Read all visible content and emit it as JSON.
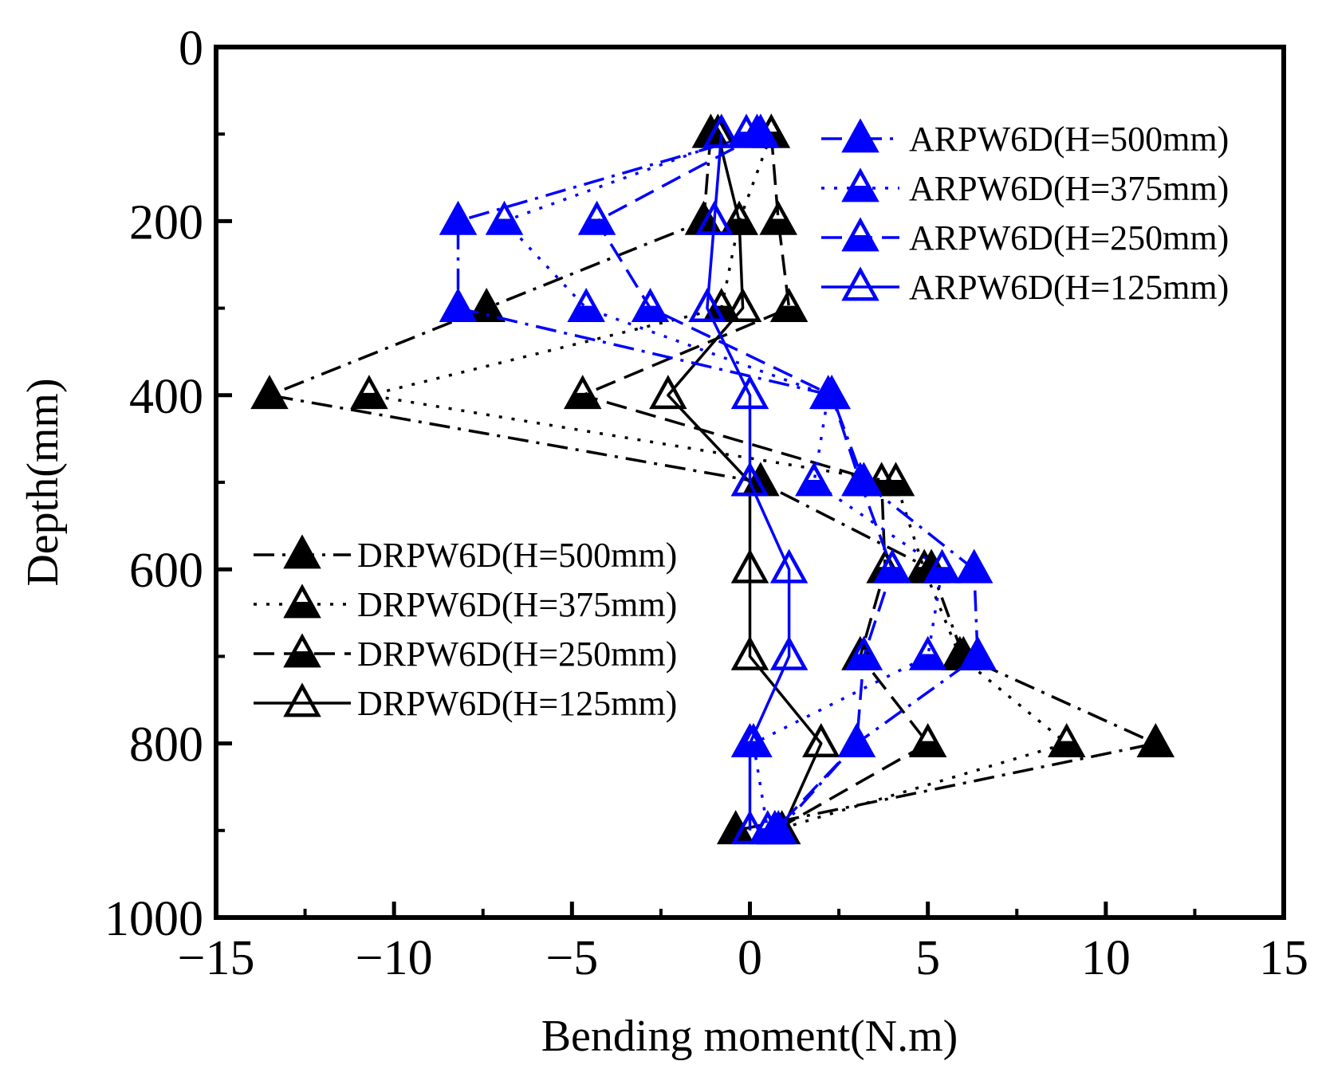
{
  "chart_data": {
    "type": "line",
    "title": "",
    "xlabel": "Bending moment(N.m)",
    "ylabel": "Depth(mm)",
    "xlim": [
      -15,
      15
    ],
    "ylim": [
      1000,
      0
    ],
    "y_inverted": true,
    "x_ticks": [
      -15,
      -10,
      -5,
      0,
      5,
      10,
      15
    ],
    "x_tick_labels": [
      "−15",
      "−10",
      "−5",
      "0",
      "5",
      "10",
      "15"
    ],
    "y_ticks": [
      0,
      200,
      400,
      600,
      800,
      1000
    ],
    "y_tick_labels": [
      "0",
      "200",
      "400",
      "600",
      "800",
      "1000"
    ],
    "grid": false,
    "legends": [
      {
        "placement": "top-right",
        "entries": [
          "ARPW6D(H=500mm)",
          "ARPW6D(H=375mm)",
          "ARPW6D(H=250mm)",
          "ARPW6D(H=125mm)"
        ]
      },
      {
        "placement": "center-left",
        "entries": [
          "DRPW6D(H=500mm)",
          "DRPW6D(H=375mm)",
          "DRPW6D(H=250mm)",
          "DRPW6D(H=125mm)"
        ]
      }
    ],
    "series": [
      {
        "name": "ARPW6D(H=500mm)",
        "color": "#0000ff",
        "line": "dashdot",
        "marker": "filled-triangle",
        "legend": 0,
        "depth": [
          100,
          200,
          300,
          400,
          500,
          600,
          700,
          800,
          900
        ],
        "moment": [
          0.2,
          -8.2,
          -8.2,
          2.3,
          3.2,
          6.3,
          6.4,
          3.0,
          0.8
        ]
      },
      {
        "name": "ARPW6D(H=375mm)",
        "color": "#0000ff",
        "line": "dotted",
        "marker": "half-triangle",
        "legend": 0,
        "depth": [
          100,
          200,
          300,
          400,
          500,
          600,
          700,
          800,
          900
        ],
        "moment": [
          -0.1,
          -6.9,
          -4.6,
          2.2,
          1.8,
          5.4,
          5.0,
          0.1,
          0.5
        ]
      },
      {
        "name": "ARPW6D(H=250mm)",
        "color": "#0000ff",
        "line": "dashed",
        "marker": "half-triangle",
        "legend": 0,
        "depth": [
          100,
          200,
          300,
          400,
          500,
          600,
          700,
          800,
          900
        ],
        "moment": [
          0.3,
          -4.3,
          -2.8,
          2.3,
          3.1,
          4.0,
          3.2,
          3.0,
          0.7
        ]
      },
      {
        "name": "ARPW6D(H=125mm)",
        "color": "#0000ff",
        "line": "solid",
        "marker": "hollow-triangle",
        "legend": 0,
        "depth": [
          100,
          200,
          300,
          400,
          500,
          600,
          700,
          800,
          900
        ],
        "moment": [
          -0.8,
          -1.0,
          -1.2,
          0.0,
          0.0,
          1.1,
          1.1,
          0.0,
          0.0
        ]
      },
      {
        "name": "DRPW6D(H=500mm)",
        "color": "#000000",
        "line": "dashdot",
        "marker": "filled-triangle",
        "legend": 1,
        "depth": [
          100,
          200,
          300,
          400,
          500,
          600,
          700,
          800,
          900
        ],
        "moment": [
          -1.1,
          -1.3,
          -7.4,
          -13.5,
          0.3,
          5.1,
          6.0,
          11.4,
          -0.4
        ]
      },
      {
        "name": "DRPW6D(H=375mm)",
        "color": "#000000",
        "line": "dotted",
        "marker": "half-triangle",
        "legend": 1,
        "depth": [
          100,
          200,
          300,
          400,
          500,
          600,
          700,
          800,
          900
        ],
        "moment": [
          0.6,
          -0.3,
          -0.8,
          -10.7,
          4.1,
          4.9,
          5.9,
          8.9,
          0.7
        ]
      },
      {
        "name": "DRPW6D(H=250mm)",
        "color": "#000000",
        "line": "dashed",
        "marker": "half-triangle",
        "legend": 1,
        "depth": [
          100,
          200,
          300,
          400,
          500,
          600,
          700,
          800,
          900
        ],
        "moment": [
          0.6,
          0.8,
          1.1,
          -4.7,
          3.7,
          3.8,
          3.1,
          5.0,
          0.7
        ]
      },
      {
        "name": "DRPW6D(H=125mm)",
        "color": "#000000",
        "line": "solid",
        "marker": "hollow-triangle",
        "legend": 1,
        "depth": [
          100,
          200,
          300,
          400,
          500,
          600,
          700,
          800,
          900
        ],
        "moment": [
          -0.9,
          -0.3,
          -0.2,
          -2.3,
          0.0,
          0.0,
          0.0,
          2.0,
          0.9
        ]
      }
    ]
  }
}
